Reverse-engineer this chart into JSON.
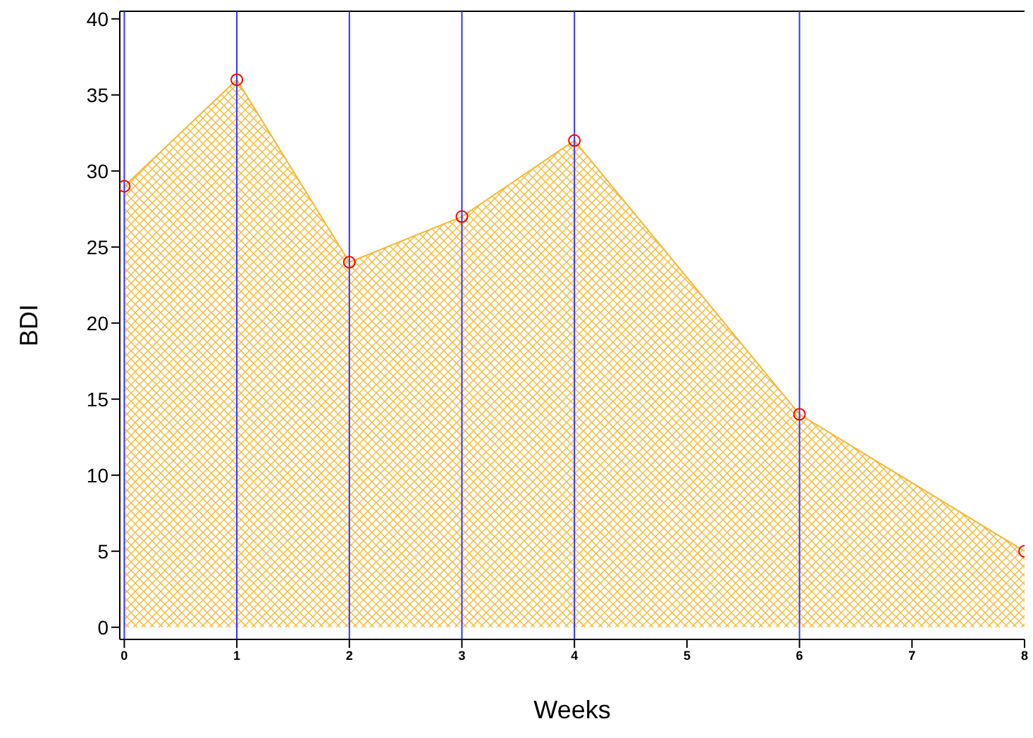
{
  "chart_data": {
    "type": "area",
    "xlabel": "Weeks",
    "ylabel": "BDI",
    "x": [
      0,
      1,
      2,
      3,
      4,
      6,
      8
    ],
    "series": [
      {
        "color": "#f5b833",
        "values": [
          29,
          36,
          24,
          27,
          32,
          14,
          5
        ]
      }
    ],
    "marker": "circle",
    "grid": false,
    "legend": false,
    "xlim": [
      -0.04,
      8
    ],
    "xticks": [
      0,
      1,
      2,
      3,
      4,
      5,
      6,
      7,
      8
    ],
    "ylim": [
      -0.8,
      40.5
    ],
    "yticks": [
      0,
      5,
      10,
      15,
      20,
      25,
      30,
      35,
      40
    ],
    "ref_lines": [
      {
        "axis": "x",
        "value": 0,
        "color": "#3333ff"
      },
      {
        "axis": "x",
        "value": 1,
        "color": "#3333ff"
      },
      {
        "axis": "x",
        "value": 2,
        "color": "#3333ff"
      },
      {
        "axis": "x",
        "value": 3,
        "color": "#3333ff"
      },
      {
        "axis": "x",
        "value": 4,
        "color": "#3333ff"
      },
      {
        "axis": "x",
        "value": 6,
        "color": "#3333ff"
      }
    ]
  }
}
